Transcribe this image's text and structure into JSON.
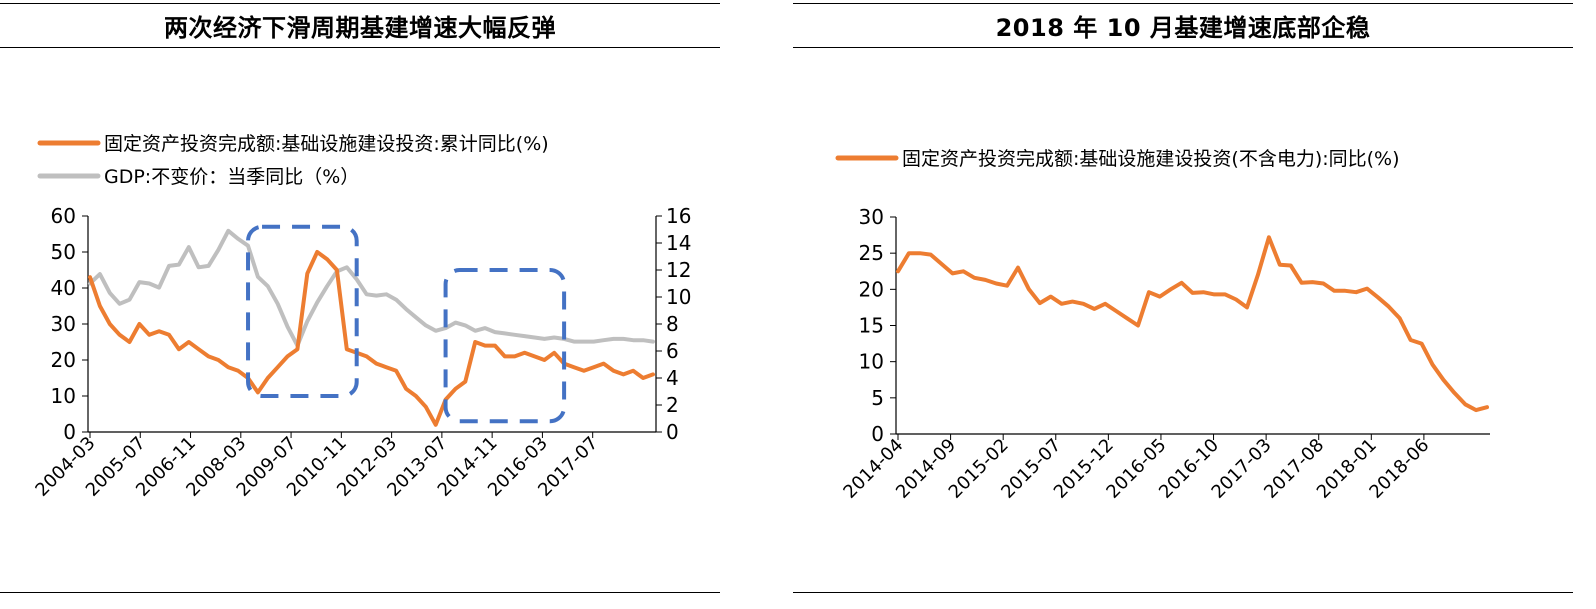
{
  "colors": {
    "orange": "#ED7D31",
    "gray": "#BFBFBF",
    "box": "#4472C4",
    "axis": "#000000"
  },
  "chart_data": [
    {
      "type": "line",
      "title": "两次经济下滑周期基建增速大幅反弹",
      "legend_placement": "top-left",
      "grid": false,
      "x_tick_labels": [
        "2004-03",
        "2005-07",
        "2006-11",
        "2008-03",
        "2009-07",
        "2010-11",
        "2012-03",
        "2013-07",
        "2014-11",
        "2016-03",
        "2017-07"
      ],
      "y_left": {
        "ylim": [
          0,
          60
        ],
        "ticks": [
          0,
          10,
          20,
          30,
          40,
          50,
          60
        ]
      },
      "y_right": {
        "ylim": [
          0,
          16
        ],
        "ticks": [
          0,
          2,
          4,
          6,
          8,
          10,
          12,
          14,
          16
        ]
      },
      "series": [
        {
          "name": "固定资产投资完成额:基础设施建设投资:累计同比(%)",
          "axis": "left",
          "color_key": "orange",
          "values": [
            43,
            35,
            30,
            27,
            25,
            30,
            27,
            28,
            27,
            23,
            25,
            23,
            21,
            20,
            18,
            17,
            15,
            11,
            15,
            18,
            21,
            23,
            44,
            50,
            48,
            45,
            23,
            22,
            21,
            19,
            18,
            17,
            12,
            10,
            7,
            2,
            9,
            12,
            14,
            25,
            24,
            24,
            21,
            21,
            22,
            21,
            20,
            22,
            19,
            18,
            17,
            18,
            19,
            17,
            16,
            17,
            15,
            16
          ]
        },
        {
          "name": "GDP:不变价：当季同比（%）",
          "axis": "right",
          "color_key": "gray",
          "values": [
            11,
            11.7,
            10.3,
            9.5,
            9.8,
            11.1,
            11,
            10.7,
            12.3,
            12.4,
            13.7,
            12.2,
            12.3,
            13.5,
            14.9,
            14.3,
            13.8,
            11.5,
            10.8,
            9.5,
            7.8,
            6.4,
            8.2,
            9.6,
            10.8,
            11.9,
            12.2,
            11.3,
            10.2,
            10.1,
            10.2,
            9.8,
            9.1,
            8.5,
            7.9,
            7.5,
            7.7,
            8.1,
            7.9,
            7.5,
            7.7,
            7.4,
            7.3,
            7.2,
            7.1,
            7,
            6.9,
            7,
            6.9,
            6.7,
            6.7,
            6.7,
            6.8,
            6.9,
            6.9,
            6.8,
            6.8,
            6.7
          ]
        }
      ],
      "highlight_boxes": [
        {
          "from_index": 16,
          "to_index": 27,
          "ymin_left": 10,
          "ymax_left": 57
        },
        {
          "from_index": 36,
          "to_index": 48,
          "ymin_left": 3,
          "ymax_left": 45
        }
      ]
    },
    {
      "type": "line",
      "title": "2018 年 10 月基建增速底部企稳",
      "legend_placement": "top-left",
      "grid": false,
      "x_tick_labels": [
        "2014-04",
        "2014-09",
        "2015-02",
        "2015-07",
        "2015-12",
        "2016-05",
        "2016-10",
        "2017-03",
        "2017-08",
        "2018-01",
        "2018-06"
      ],
      "y_left": {
        "ylim": [
          0,
          30
        ],
        "ticks": [
          0,
          5,
          10,
          15,
          20,
          25,
          30
        ]
      },
      "series": [
        {
          "name": "固定资产投资完成额:基础设施建设投资(不含电力):同比(%)",
          "axis": "left",
          "color_key": "orange",
          "values": [
            22.5,
            25,
            25,
            24.8,
            23.5,
            22.2,
            22.5,
            21.6,
            21.3,
            20.8,
            20.5,
            23,
            20,
            18.1,
            19,
            18,
            18.3,
            18,
            17.3,
            18,
            17,
            16,
            15,
            19.6,
            19,
            20,
            20.9,
            19.5,
            19.6,
            19.3,
            19.3,
            18.6,
            17.5,
            22,
            27.2,
            23.4,
            23.3,
            20.9,
            21,
            20.8,
            19.8,
            19.8,
            19.6,
            20.1,
            18.9,
            17.6,
            16,
            13,
            12.5,
            9.6,
            7.5,
            5.7,
            4.1,
            3.3,
            3.7
          ]
        }
      ]
    }
  ]
}
